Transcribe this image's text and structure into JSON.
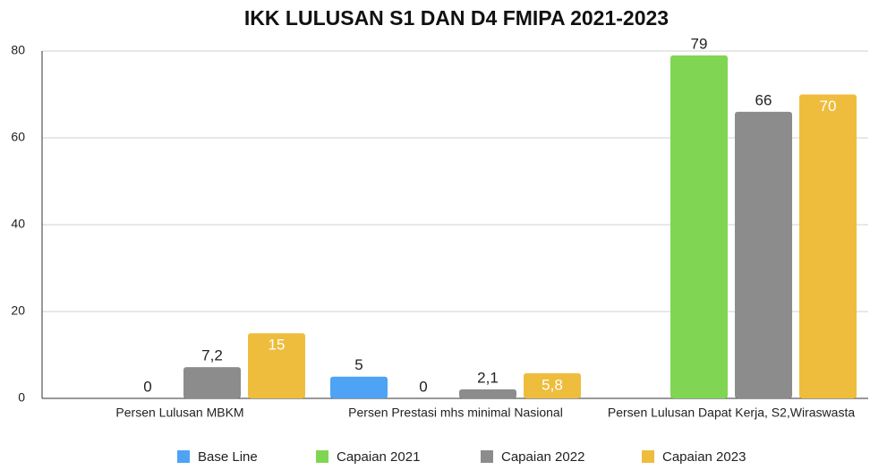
{
  "chart_data": {
    "type": "bar",
    "title": "IKK LULUSAN S1 DAN D4 FMIPA 2021-2023",
    "categories": [
      "Persen Lulusan MBKM",
      "Persen Prestasi mhs minimal Nasional",
      "Persen Lulusan Dapat Kerja, S2,Wiraswasta"
    ],
    "series": [
      {
        "name": "Base Line",
        "color": "#4ea3f5",
        "values": [
          null,
          5,
          null
        ]
      },
      {
        "name": "Capaian 2021",
        "color": "#80d653",
        "values": [
          0,
          0,
          79
        ]
      },
      {
        "name": "Capaian 2022",
        "color": "#8c8c8c",
        "values": [
          7.2,
          2.1,
          66
        ],
        "value_labels": [
          "7,2",
          "2,1",
          "66"
        ]
      },
      {
        "name": "Capaian 2023",
        "color": "#efbd3d",
        "values": [
          15,
          5.8,
          70
        ],
        "value_labels": [
          "15",
          "5,8",
          "70"
        ]
      }
    ],
    "ylim": [
      0,
      80
    ],
    "yticks": [
      0,
      20,
      40,
      60,
      80
    ],
    "grid": true
  }
}
